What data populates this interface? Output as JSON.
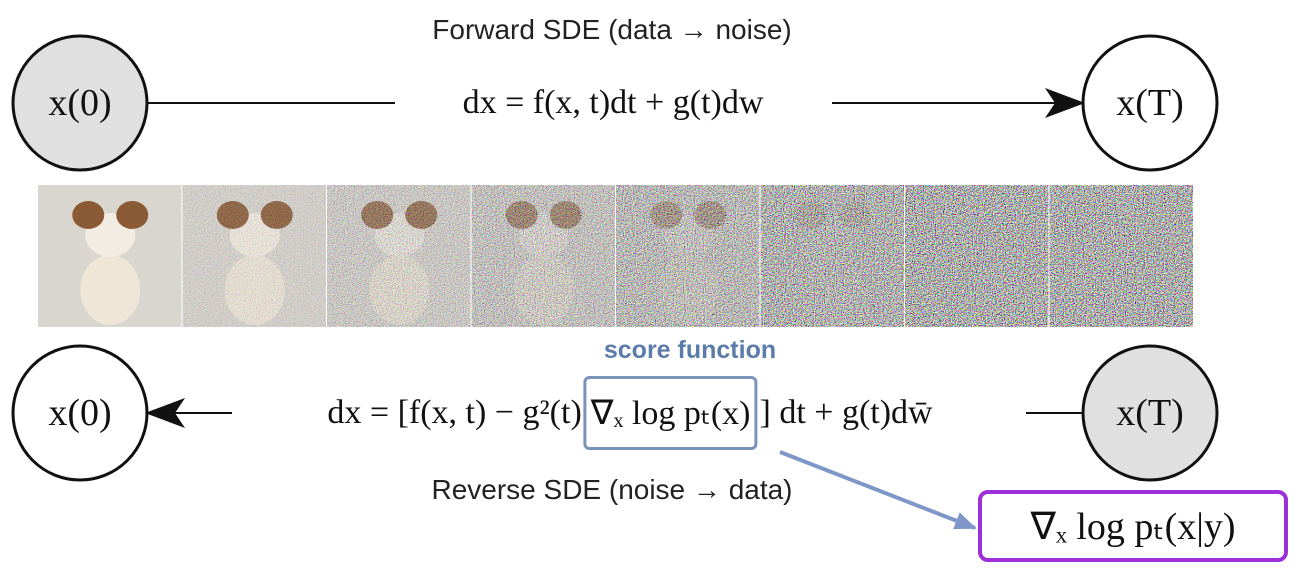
{
  "header": {
    "title": "Forward SDE (data → noise)"
  },
  "forward": {
    "start": "x(0)",
    "end": "x(T)",
    "equation": "dx = f(x, t)dt + g(t)dw"
  },
  "reverse": {
    "start": "x(T)",
    "end": "x(0)",
    "equation_parts": [
      "dx = [f(x, t) − g²(t)",
      "∇ₓ log pₜ(x)",
      "] dt + g(t)dw̄"
    ],
    "label": "Reverse SDE (noise → data)"
  },
  "score": {
    "label": "score function",
    "conditional": "∇ₓ log pₜ(x|y)"
  }
}
